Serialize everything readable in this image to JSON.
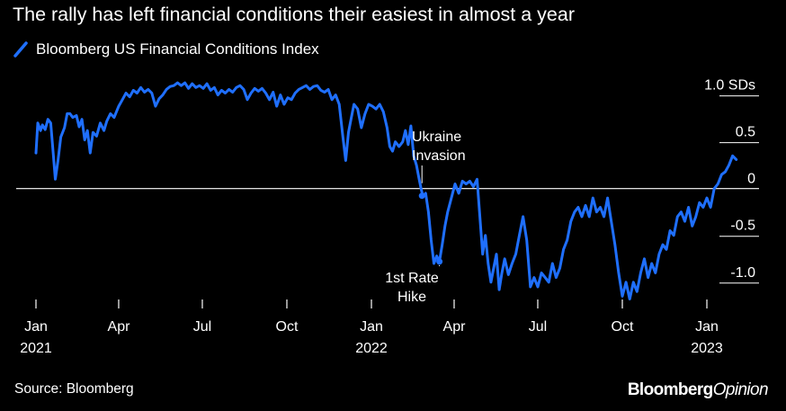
{
  "title": "The rally has left financial conditions their easiest in almost a year",
  "source": "Source: Bloomberg",
  "brand": {
    "part1": "Bloomberg",
    "part2": "Opinion"
  },
  "colors": {
    "background": "#000000",
    "line": "#1f6fff",
    "text": "#ffffff"
  },
  "chart_data": {
    "type": "line",
    "xlim": [
      "2021-01-01",
      "2023-02-15"
    ],
    "ylim": [
      -1.3,
      1.15
    ],
    "y_unit": "SDs",
    "yticks": [
      {
        "value": 1.0,
        "label": "1.0 SDs"
      },
      {
        "value": 0.5,
        "label": "0.5"
      },
      {
        "value": 0,
        "label": "0"
      },
      {
        "value": -0.5,
        "label": "-0.5"
      },
      {
        "value": -1.0,
        "label": "-1.0"
      }
    ],
    "xticks": [
      {
        "date": "2021-01-01",
        "label": "Jan",
        "year": "2021"
      },
      {
        "date": "2021-04-01",
        "label": "Apr",
        "year": ""
      },
      {
        "date": "2021-07-01",
        "label": "Jul",
        "year": ""
      },
      {
        "date": "2021-10-01",
        "label": "Oct",
        "year": ""
      },
      {
        "date": "2022-01-01",
        "label": "Jan",
        "year": "2022"
      },
      {
        "date": "2022-04-01",
        "label": "Apr",
        "year": ""
      },
      {
        "date": "2022-07-01",
        "label": "Jul",
        "year": ""
      },
      {
        "date": "2022-10-01",
        "label": "Oct",
        "year": ""
      },
      {
        "date": "2023-01-01",
        "label": "Jan",
        "year": "2023"
      }
    ],
    "series": [
      {
        "name": "Bloomberg US Financial Conditions Index",
        "points": [
          [
            "2021-01-01",
            0.38
          ],
          [
            "2021-01-03",
            0.7
          ],
          [
            "2021-01-06",
            0.62
          ],
          [
            "2021-01-08",
            0.68
          ],
          [
            "2021-01-11",
            0.63
          ],
          [
            "2021-01-14",
            0.74
          ],
          [
            "2021-01-17",
            0.7
          ],
          [
            "2021-01-20",
            0.35
          ],
          [
            "2021-01-22",
            0.1
          ],
          [
            "2021-01-25",
            0.3
          ],
          [
            "2021-01-28",
            0.55
          ],
          [
            "2021-02-01",
            0.65
          ],
          [
            "2021-02-04",
            0.8
          ],
          [
            "2021-02-07",
            0.8
          ],
          [
            "2021-02-10",
            0.76
          ],
          [
            "2021-02-14",
            0.78
          ],
          [
            "2021-02-17",
            0.66
          ],
          [
            "2021-02-20",
            0.74
          ],
          [
            "2021-02-23",
            0.52
          ],
          [
            "2021-02-26",
            0.62
          ],
          [
            "2021-03-01",
            0.38
          ],
          [
            "2021-03-04",
            0.6
          ],
          [
            "2021-03-08",
            0.56
          ],
          [
            "2021-03-12",
            0.7
          ],
          [
            "2021-03-16",
            0.62
          ],
          [
            "2021-03-19",
            0.72
          ],
          [
            "2021-03-23",
            0.8
          ],
          [
            "2021-03-27",
            0.76
          ],
          [
            "2021-04-01",
            0.88
          ],
          [
            "2021-04-05",
            0.95
          ],
          [
            "2021-04-09",
            1.02
          ],
          [
            "2021-04-13",
            0.98
          ],
          [
            "2021-04-17",
            1.05
          ],
          [
            "2021-04-21",
            1.02
          ],
          [
            "2021-04-25",
            1.08
          ],
          [
            "2021-04-29",
            1.03
          ],
          [
            "2021-05-03",
            1.06
          ],
          [
            "2021-05-07",
            1.02
          ],
          [
            "2021-05-11",
            0.88
          ],
          [
            "2021-05-15",
            0.96
          ],
          [
            "2021-05-19",
            1.0
          ],
          [
            "2021-05-23",
            1.06
          ],
          [
            "2021-05-27",
            1.09
          ],
          [
            "2021-05-31",
            1.1
          ],
          [
            "2021-06-04",
            1.13
          ],
          [
            "2021-06-08",
            1.1
          ],
          [
            "2021-06-12",
            1.13
          ],
          [
            "2021-06-16",
            1.07
          ],
          [
            "2021-06-20",
            1.12
          ],
          [
            "2021-06-24",
            1.08
          ],
          [
            "2021-06-28",
            1.1
          ],
          [
            "2021-07-02",
            1.07
          ],
          [
            "2021-07-06",
            1.12
          ],
          [
            "2021-07-10",
            1.05
          ],
          [
            "2021-07-14",
            1.08
          ],
          [
            "2021-07-18",
            1.0
          ],
          [
            "2021-07-22",
            1.05
          ],
          [
            "2021-07-26",
            1.02
          ],
          [
            "2021-07-30",
            1.06
          ],
          [
            "2021-08-03",
            1.03
          ],
          [
            "2021-08-07",
            1.08
          ],
          [
            "2021-08-11",
            1.1
          ],
          [
            "2021-08-15",
            1.06
          ],
          [
            "2021-08-19",
            0.95
          ],
          [
            "2021-08-23",
            1.02
          ],
          [
            "2021-08-27",
            1.07
          ],
          [
            "2021-08-31",
            1.04
          ],
          [
            "2021-09-04",
            1.07
          ],
          [
            "2021-09-08",
            1.02
          ],
          [
            "2021-09-12",
            0.95
          ],
          [
            "2021-09-16",
            1.03
          ],
          [
            "2021-09-20",
            0.88
          ],
          [
            "2021-09-24",
            1.0
          ],
          [
            "2021-09-28",
            0.9
          ],
          [
            "2021-10-02",
            0.97
          ],
          [
            "2021-10-06",
            0.95
          ],
          [
            "2021-10-10",
            1.02
          ],
          [
            "2021-10-14",
            1.06
          ],
          [
            "2021-10-18",
            1.08
          ],
          [
            "2021-10-22",
            1.1
          ],
          [
            "2021-10-26",
            1.06
          ],
          [
            "2021-10-30",
            1.09
          ],
          [
            "2021-11-03",
            1.1
          ],
          [
            "2021-11-07",
            1.05
          ],
          [
            "2021-11-11",
            1.03
          ],
          [
            "2021-11-15",
            1.06
          ],
          [
            "2021-11-19",
            0.95
          ],
          [
            "2021-11-23",
            1.0
          ],
          [
            "2021-11-27",
            0.9
          ],
          [
            "2021-12-01",
            0.55
          ],
          [
            "2021-12-04",
            0.3
          ],
          [
            "2021-12-07",
            0.6
          ],
          [
            "2021-12-10",
            0.75
          ],
          [
            "2021-12-13",
            0.9
          ],
          [
            "2021-12-17",
            0.85
          ],
          [
            "2021-12-21",
            0.65
          ],
          [
            "2021-12-25",
            0.8
          ],
          [
            "2021-12-29",
            0.9
          ],
          [
            "2022-01-02",
            0.88
          ],
          [
            "2022-01-06",
            0.85
          ],
          [
            "2022-01-10",
            0.9
          ],
          [
            "2022-01-14",
            0.82
          ],
          [
            "2022-01-18",
            0.65
          ],
          [
            "2022-01-21",
            0.45
          ],
          [
            "2022-01-24",
            0.4
          ],
          [
            "2022-01-27",
            0.5
          ],
          [
            "2022-01-31",
            0.45
          ],
          [
            "2022-02-04",
            0.5
          ],
          [
            "2022-02-07",
            0.62
          ],
          [
            "2022-02-10",
            0.47
          ],
          [
            "2022-02-13",
            0.67
          ],
          [
            "2022-02-16",
            0.35
          ],
          [
            "2022-02-19",
            0.25
          ],
          [
            "2022-02-22",
            0.1
          ],
          [
            "2022-02-24",
            0.0
          ],
          [
            "2022-02-26",
            -0.08
          ],
          [
            "2022-03-01",
            -0.05
          ],
          [
            "2022-03-04",
            -0.25
          ],
          [
            "2022-03-07",
            -0.55
          ],
          [
            "2022-03-10",
            -0.8
          ],
          [
            "2022-03-13",
            -0.72
          ],
          [
            "2022-03-16",
            -0.78
          ],
          [
            "2022-03-19",
            -0.6
          ],
          [
            "2022-03-22",
            -0.4
          ],
          [
            "2022-03-25",
            -0.25
          ],
          [
            "2022-03-29",
            -0.1
          ],
          [
            "2022-04-02",
            0.05
          ],
          [
            "2022-04-06",
            -0.05
          ],
          [
            "2022-04-10",
            0.08
          ],
          [
            "2022-04-14",
            0.05
          ],
          [
            "2022-04-18",
            0.08
          ],
          [
            "2022-04-22",
            0.02
          ],
          [
            "2022-04-26",
            0.1
          ],
          [
            "2022-04-29",
            -0.3
          ],
          [
            "2022-05-02",
            -0.7
          ],
          [
            "2022-05-05",
            -0.5
          ],
          [
            "2022-05-08",
            -0.8
          ],
          [
            "2022-05-11",
            -1.0
          ],
          [
            "2022-05-14",
            -0.85
          ],
          [
            "2022-05-17",
            -0.7
          ],
          [
            "2022-05-20",
            -1.08
          ],
          [
            "2022-05-23",
            -0.9
          ],
          [
            "2022-05-26",
            -0.75
          ],
          [
            "2022-05-30",
            -0.92
          ],
          [
            "2022-06-03",
            -0.8
          ],
          [
            "2022-06-07",
            -0.7
          ],
          [
            "2022-06-11",
            -0.5
          ],
          [
            "2022-06-15",
            -0.3
          ],
          [
            "2022-06-19",
            -0.55
          ],
          [
            "2022-06-23",
            -1.05
          ],
          [
            "2022-06-27",
            -0.95
          ],
          [
            "2022-07-01",
            -1.05
          ],
          [
            "2022-07-05",
            -0.9
          ],
          [
            "2022-07-09",
            -0.95
          ],
          [
            "2022-07-13",
            -1.0
          ],
          [
            "2022-07-17",
            -0.8
          ],
          [
            "2022-07-21",
            -0.95
          ],
          [
            "2022-07-25",
            -0.85
          ],
          [
            "2022-07-29",
            -0.65
          ],
          [
            "2022-08-02",
            -0.55
          ],
          [
            "2022-08-06",
            -0.35
          ],
          [
            "2022-08-10",
            -0.25
          ],
          [
            "2022-08-14",
            -0.2
          ],
          [
            "2022-08-18",
            -0.3
          ],
          [
            "2022-08-22",
            -0.18
          ],
          [
            "2022-08-26",
            -0.3
          ],
          [
            "2022-08-30",
            -0.1
          ],
          [
            "2022-09-03",
            -0.25
          ],
          [
            "2022-09-07",
            -0.2
          ],
          [
            "2022-09-11",
            -0.3
          ],
          [
            "2022-09-15",
            -0.1
          ],
          [
            "2022-09-19",
            -0.35
          ],
          [
            "2022-09-23",
            -0.6
          ],
          [
            "2022-09-27",
            -0.9
          ],
          [
            "2022-10-01",
            -1.15
          ],
          [
            "2022-10-05",
            -1.0
          ],
          [
            "2022-10-09",
            -1.18
          ],
          [
            "2022-10-13",
            -1.0
          ],
          [
            "2022-10-17",
            -1.1
          ],
          [
            "2022-10-21",
            -0.9
          ],
          [
            "2022-10-25",
            -0.75
          ],
          [
            "2022-10-29",
            -0.95
          ],
          [
            "2022-11-02",
            -0.8
          ],
          [
            "2022-11-06",
            -0.9
          ],
          [
            "2022-11-10",
            -0.7
          ],
          [
            "2022-11-14",
            -0.6
          ],
          [
            "2022-11-18",
            -0.65
          ],
          [
            "2022-11-22",
            -0.45
          ],
          [
            "2022-11-26",
            -0.5
          ],
          [
            "2022-11-30",
            -0.3
          ],
          [
            "2022-12-04",
            -0.25
          ],
          [
            "2022-12-08",
            -0.35
          ],
          [
            "2022-12-12",
            -0.2
          ],
          [
            "2022-12-16",
            -0.4
          ],
          [
            "2022-12-20",
            -0.3
          ],
          [
            "2022-12-24",
            -0.15
          ],
          [
            "2022-12-28",
            -0.2
          ],
          [
            "2023-01-01",
            -0.1
          ],
          [
            "2023-01-05",
            -0.2
          ],
          [
            "2023-01-09",
            0.0
          ],
          [
            "2023-01-13",
            0.05
          ],
          [
            "2023-01-17",
            0.15
          ],
          [
            "2023-01-21",
            0.18
          ],
          [
            "2023-01-25",
            0.25
          ],
          [
            "2023-01-29",
            0.35
          ],
          [
            "2023-02-02",
            0.31
          ]
        ]
      }
    ],
    "annotations": [
      {
        "id": "ukraine",
        "lines": [
          "Ukraine",
          "Invasion"
        ],
        "date": "2022-02-24",
        "value": 0
      },
      {
        "id": "rate-hike",
        "lines": [
          "1st Rate",
          "Hike"
        ],
        "date": "2022-03-16",
        "value": -0.78
      }
    ]
  }
}
